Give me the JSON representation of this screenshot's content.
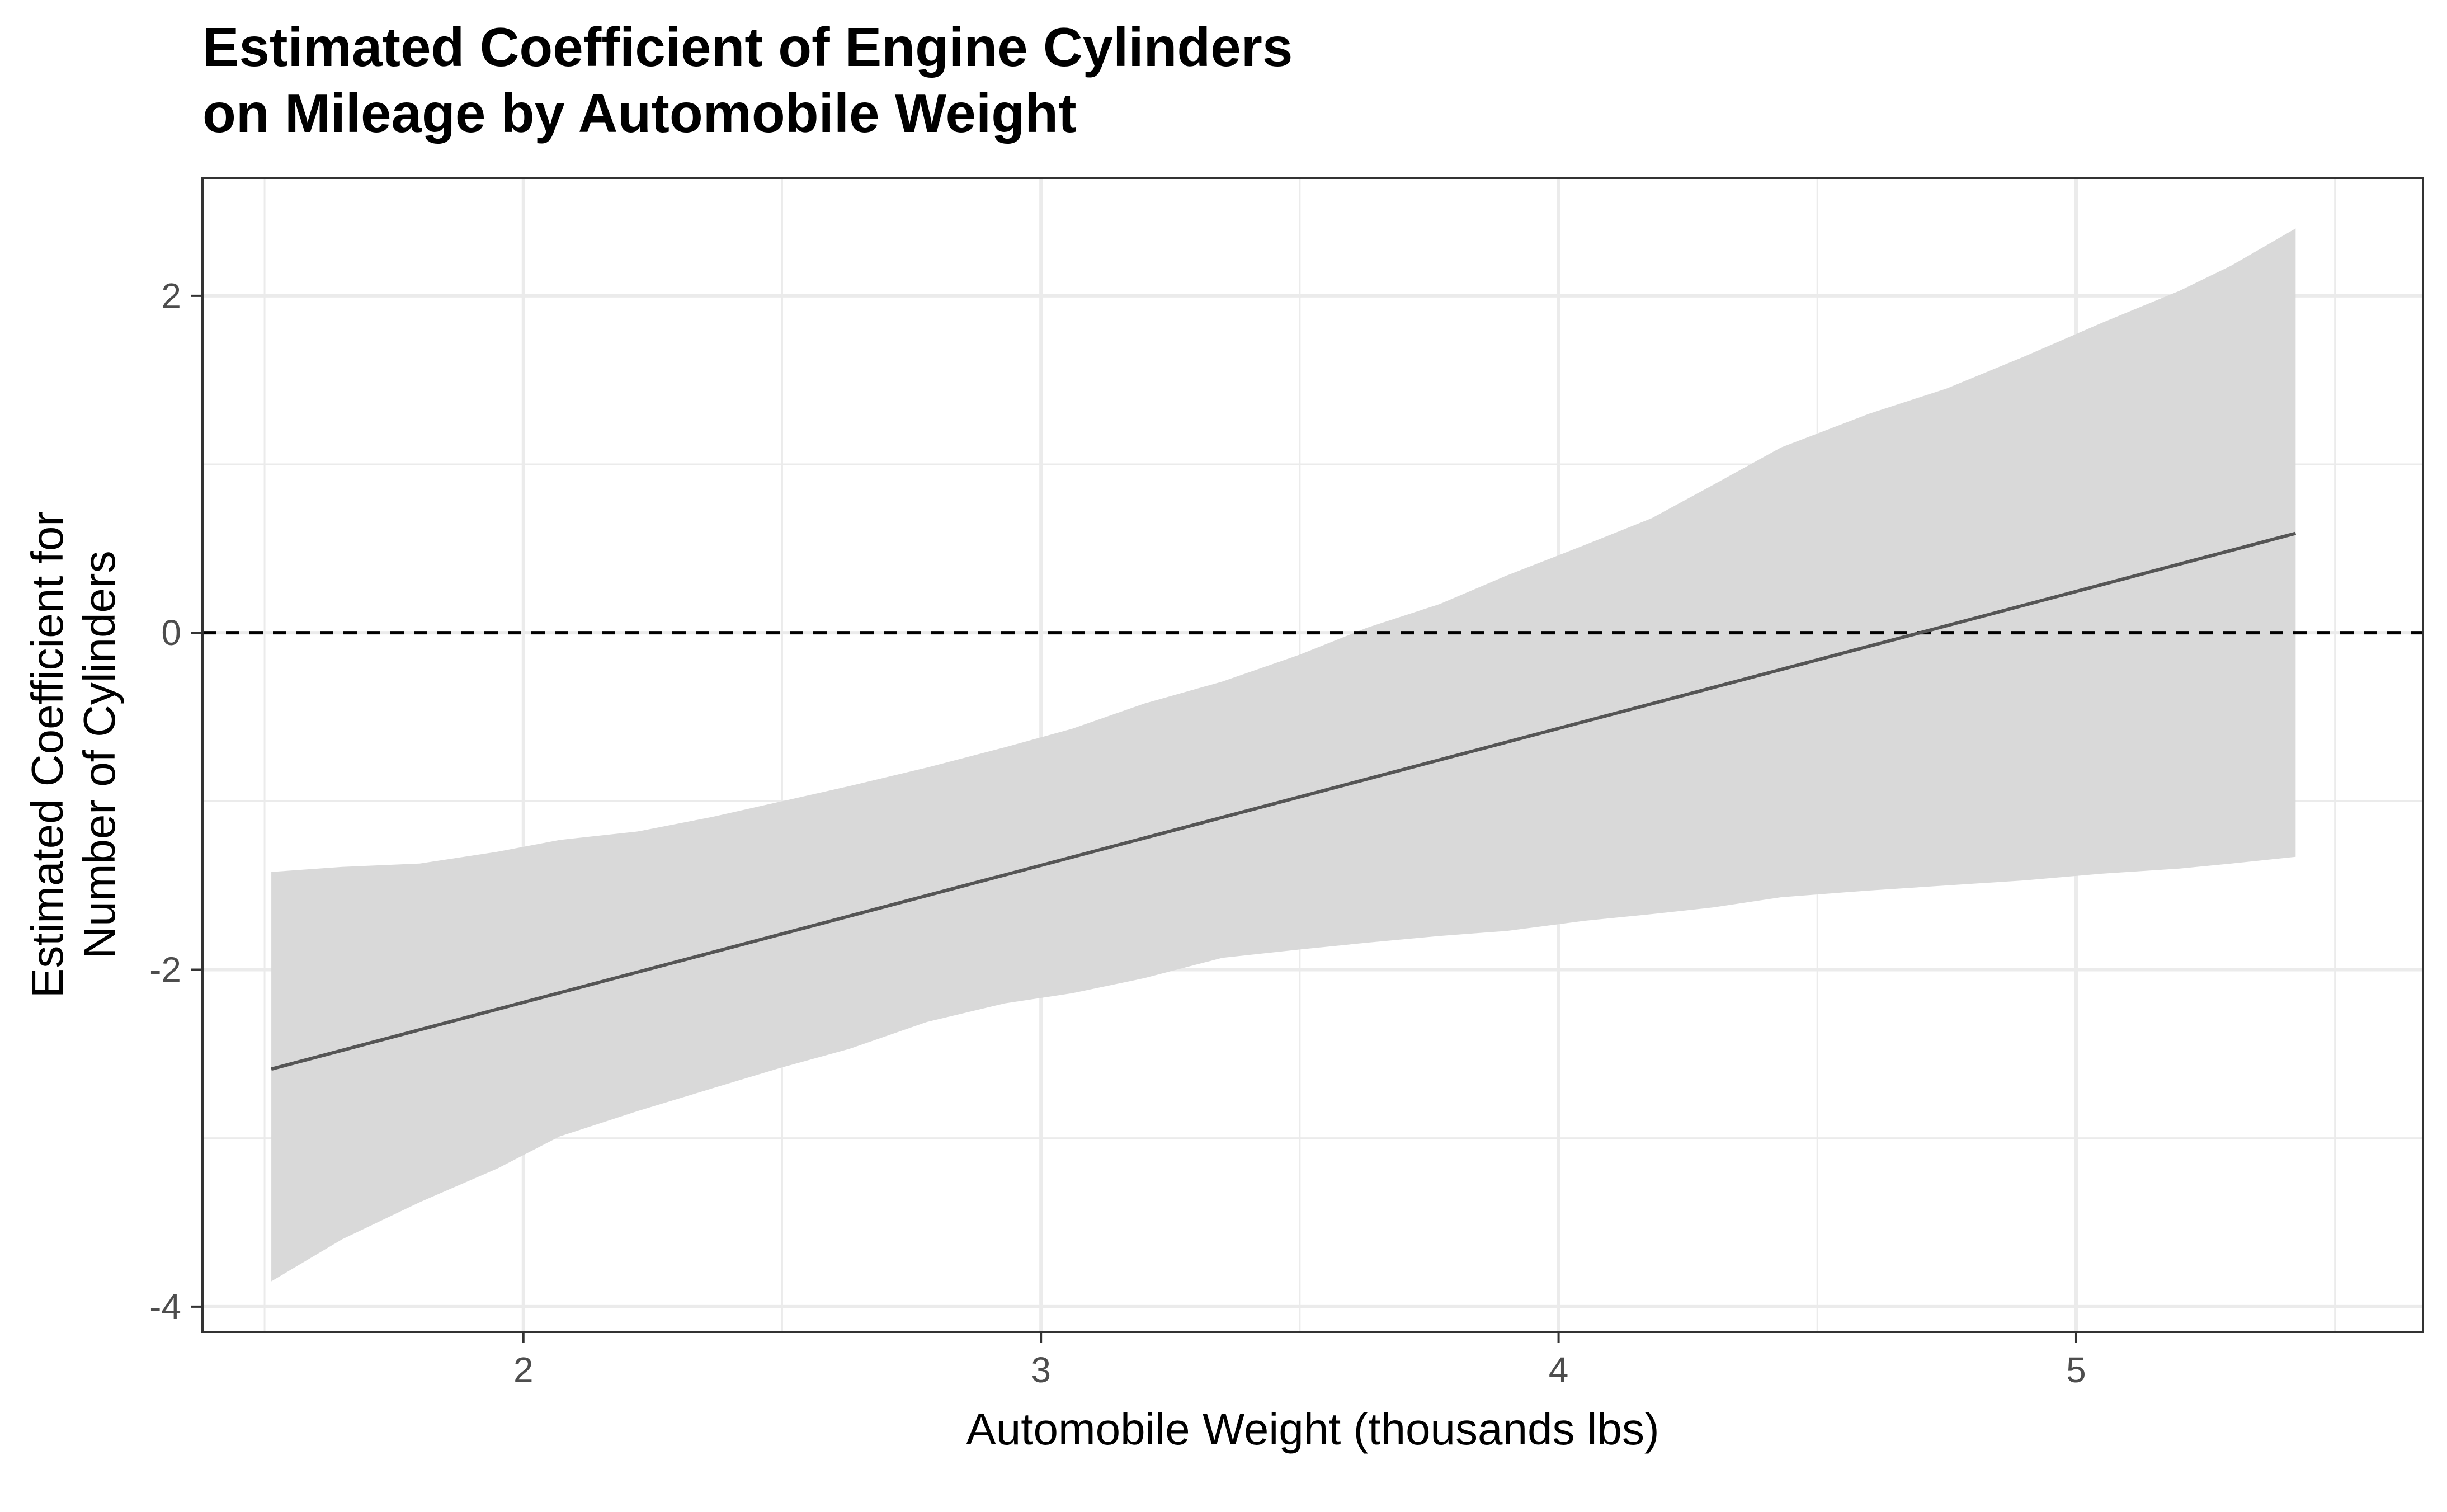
{
  "chart_data": {
    "type": "line",
    "title": [
      "Estimated Coefficient of Engine Cylinders",
      "on Mileage by Automobile Weight"
    ],
    "xlabel": "Automobile Weight (thousands lbs)",
    "ylabel": [
      "Estimated Coefficient for",
      "Number of Cylinders"
    ],
    "xlim": [
      1.38,
      5.67
    ],
    "ylim": [
      -4.15,
      2.7
    ],
    "x_ticks": [
      2,
      3,
      4,
      5
    ],
    "x_tick_labels": [
      "2",
      "3",
      "4",
      "5"
    ],
    "x_minor_ticks": [
      1.5,
      2.5,
      3.5,
      4.5,
      5.5
    ],
    "y_ticks": [
      -4,
      -2,
      0,
      2
    ],
    "y_tick_labels": [
      "-4",
      "-2",
      "0",
      "2"
    ],
    "y_minor_ticks": [
      -3,
      -1,
      1
    ],
    "grid": true,
    "reference_line": {
      "y": 0,
      "style": "dashed",
      "color": "#000000"
    },
    "series": [
      {
        "values_x": [
          1.513,
          5.424
        ],
        "values_y": [
          -2.59,
          0.59
        ],
        "color": "#555555"
      }
    ],
    "confidence_band": {
      "color": "#d9d9d9",
      "x": [
        1.513,
        1.65,
        1.8,
        1.95,
        2.07,
        2.22,
        2.37,
        2.5,
        2.63,
        2.78,
        2.93,
        3.06,
        3.2,
        3.35,
        3.5,
        3.63,
        3.77,
        3.9,
        4.05,
        4.18,
        4.3,
        4.43,
        4.6,
        4.75,
        4.9,
        5.05,
        5.2,
        5.3,
        5.424
      ],
      "upper": [
        -1.42,
        -1.39,
        -1.37,
        -1.3,
        -1.23,
        -1.18,
        -1.09,
        -1.0,
        -0.91,
        -0.8,
        -0.68,
        -0.57,
        -0.42,
        -0.29,
        -0.13,
        0.03,
        0.17,
        0.34,
        0.52,
        0.68,
        0.88,
        1.1,
        1.3,
        1.45,
        1.64,
        1.84,
        2.03,
        2.18,
        2.4
      ],
      "lower": [
        -3.85,
        -3.6,
        -3.38,
        -3.18,
        -2.99,
        -2.84,
        -2.7,
        -2.58,
        -2.47,
        -2.31,
        -2.2,
        -2.14,
        -2.05,
        -1.93,
        -1.88,
        -1.84,
        -1.8,
        -1.77,
        -1.71,
        -1.67,
        -1.63,
        -1.57,
        -1.53,
        -1.5,
        -1.47,
        -1.43,
        -1.4,
        -1.37,
        -1.33
      ]
    }
  }
}
